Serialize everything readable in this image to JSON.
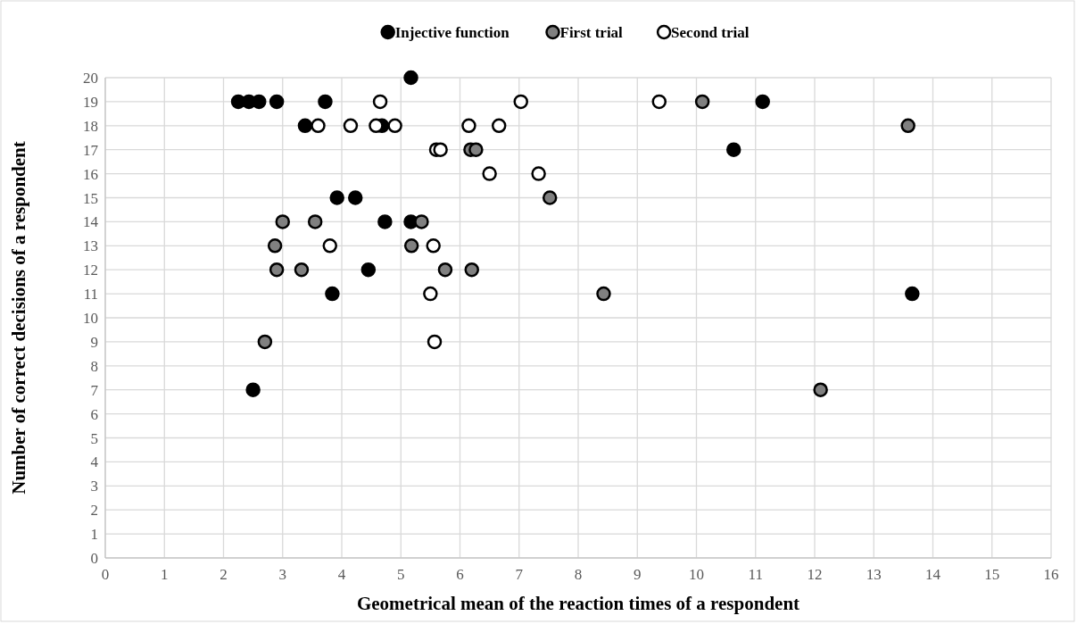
{
  "chart_data": {
    "type": "scatter",
    "xlabel": "Geometrical mean of the reaction times of a respondent",
    "ylabel": "Number of correct decisions of a respondent",
    "xlim": [
      0,
      16
    ],
    "ylim": [
      0,
      20
    ],
    "xticks": [
      0,
      1,
      2,
      3,
      4,
      5,
      6,
      7,
      8,
      9,
      10,
      11,
      12,
      13,
      14,
      15,
      16
    ],
    "yticks": [
      0,
      1,
      2,
      3,
      4,
      5,
      6,
      7,
      8,
      9,
      10,
      11,
      12,
      13,
      14,
      15,
      16,
      17,
      18,
      19,
      20
    ],
    "grid": true,
    "legend": "top",
    "marker": "circle",
    "series": [
      {
        "name": "Injective function",
        "color": "#000000",
        "x": [
          2.25,
          2.43,
          2.6,
          2.9,
          3.72,
          5.17,
          3.38,
          4.68,
          3.92,
          4.23,
          4.73,
          5.17,
          4.45,
          3.84,
          2.5,
          10.63,
          11.12,
          13.65
        ],
        "values": [
          19,
          19,
          19,
          19,
          19,
          20,
          18,
          18,
          15,
          15,
          14,
          14,
          12,
          11,
          7,
          17,
          19,
          11
        ]
      },
      {
        "name": "First trial",
        "color": "#808080",
        "x": [
          10.1,
          13.58,
          6.18,
          6.27,
          7.52,
          3.0,
          3.55,
          5.35,
          2.87,
          5.18,
          2.9,
          3.32,
          5.75,
          6.2,
          8.43,
          2.7,
          12.1
        ],
        "values": [
          19,
          18,
          17,
          17,
          15,
          14,
          14,
          14,
          13,
          13,
          12,
          12,
          12,
          12,
          11,
          9,
          7
        ]
      },
      {
        "name": "Second trial",
        "color": "#ffffff",
        "x": [
          4.65,
          7.03,
          9.37,
          3.6,
          4.15,
          4.58,
          4.9,
          6.15,
          6.66,
          5.6,
          5.67,
          6.5,
          7.33,
          3.8,
          5.55,
          5.5,
          5.57
        ],
        "values": [
          19,
          19,
          19,
          18,
          18,
          18,
          18,
          18,
          18,
          17,
          17,
          16,
          16,
          13,
          13,
          11,
          9
        ]
      }
    ]
  }
}
